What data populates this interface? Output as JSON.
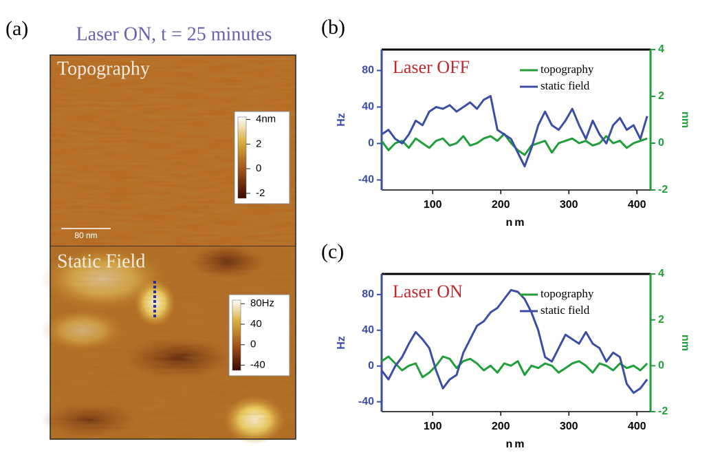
{
  "panel_a": {
    "label": "(a)",
    "title": "Laser ON, t = 25 minutes",
    "scalebar": "80 nm",
    "images": [
      {
        "label": "Topography",
        "colorbar": {
          "range": [
            -2.4,
            4.2
          ],
          "ticks": [
            {
              "value": 4,
              "label": "4nm"
            },
            2,
            0,
            -2
          ]
        }
      },
      {
        "label": "Static Field",
        "colorbar": {
          "range": [
            -50,
            87
          ],
          "ticks": [
            {
              "value": 80,
              "label": "80Hz"
            },
            40,
            0,
            -40
          ]
        }
      }
    ]
  },
  "chart_data": [
    {
      "type": "line",
      "panel_label": "(b)",
      "annotation": "Laser OFF",
      "xlabel": "nm",
      "ylabel": "Hz",
      "y2label": "nm",
      "legend": "upper right",
      "x": [
        25,
        35,
        45,
        55,
        65,
        75,
        85,
        95,
        105,
        115,
        125,
        135,
        145,
        155,
        165,
        175,
        185,
        195,
        205,
        215,
        225,
        235,
        245,
        255,
        265,
        275,
        285,
        295,
        305,
        315,
        325,
        335,
        345,
        355,
        365,
        375,
        385,
        395,
        405,
        415
      ],
      "xlim": [
        25,
        420
      ],
      "xticks": [
        100,
        200,
        300,
        400
      ],
      "ylim": [
        -51,
        103
      ],
      "yticks": [
        -40,
        0,
        40,
        80
      ],
      "y2lim": [
        -2,
        4
      ],
      "y2ticks": [
        -2,
        0,
        2,
        4
      ],
      "series": [
        {
          "name": "topography",
          "color": "#1f9e3a",
          "axis": "y2",
          "values": [
            0.1,
            -0.3,
            0,
            0.1,
            -0.2,
            0.2,
            0,
            -0.2,
            0.1,
            0.2,
            -0.1,
            0,
            0.3,
            -0.1,
            0,
            0.2,
            0.3,
            0.1,
            0.4,
            0,
            -0.3,
            -0.5,
            -0.1,
            0,
            0.1,
            -0.4,
            0,
            0.1,
            0.2,
            0,
            0.1,
            -0.1,
            0,
            0.3,
            0,
            0.1,
            -0.2,
            0,
            0.1,
            0.2
          ]
        },
        {
          "name": "static field",
          "color": "#3b4ea6",
          "values": [
            10,
            15,
            5,
            0,
            10,
            25,
            20,
            35,
            40,
            38,
            42,
            35,
            40,
            45,
            38,
            48,
            52,
            15,
            10,
            5,
            -10,
            -25,
            -5,
            20,
            35,
            20,
            15,
            25,
            38,
            20,
            5,
            25,
            10,
            0,
            20,
            28,
            15,
            20,
            5,
            30
          ]
        }
      ]
    },
    {
      "type": "line",
      "panel_label": "(c)",
      "annotation": "Laser ON",
      "xlabel": "nm",
      "ylabel": "Hz",
      "y2label": "nm",
      "legend": "upper right",
      "x": [
        25,
        35,
        45,
        55,
        65,
        75,
        85,
        95,
        105,
        115,
        125,
        135,
        145,
        155,
        165,
        175,
        185,
        195,
        205,
        215,
        225,
        235,
        245,
        255,
        265,
        275,
        285,
        295,
        305,
        315,
        325,
        335,
        345,
        355,
        365,
        375,
        385,
        395,
        405,
        415
      ],
      "xlim": [
        25,
        420
      ],
      "xticks": [
        100,
        200,
        300,
        400
      ],
      "ylim": [
        -51,
        103
      ],
      "yticks": [
        -40,
        0,
        40,
        80
      ],
      "y2lim": [
        -2,
        4
      ],
      "y2ticks": [
        -2,
        0,
        2,
        4
      ],
      "series": [
        {
          "name": "topography",
          "color": "#1f9e3a",
          "axis": "y2",
          "values": [
            0.2,
            0.4,
            0.1,
            -0.2,
            0,
            0.1,
            -0.5,
            -0.3,
            0,
            0.4,
            0.3,
            -0.1,
            0.2,
            0.3,
            0.1,
            -0.2,
            0,
            -0.3,
            0.1,
            0,
            0.2,
            -0.4,
            0,
            -0.1,
            0.1,
            0,
            -0.3,
            -0.1,
            0.1,
            0.2,
            0,
            -0.3,
            0.1,
            0,
            -0.2,
            0.1,
            -0.1,
            0,
            -0.2,
            0.1
          ]
        },
        {
          "name": "static field",
          "color": "#3b4ea6",
          "values": [
            -5,
            -15,
            0,
            10,
            25,
            38,
            30,
            20,
            -5,
            -25,
            -15,
            -10,
            15,
            30,
            45,
            50,
            60,
            65,
            75,
            85,
            83,
            75,
            60,
            40,
            10,
            5,
            20,
            35,
            30,
            25,
            38,
            25,
            20,
            5,
            15,
            10,
            -20,
            -30,
            -25,
            -15
          ]
        }
      ]
    }
  ]
}
